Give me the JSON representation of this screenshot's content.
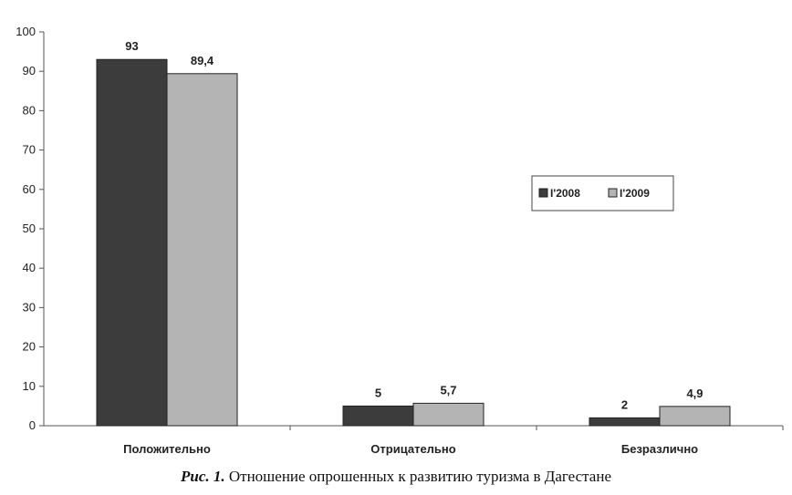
{
  "chart_data": {
    "type": "bar",
    "categories": [
      "Положительно",
      "Отрицательно",
      "Безразлично"
    ],
    "series": [
      {
        "name": "I'2008",
        "values": [
          93,
          5,
          2
        ],
        "labels": [
          "93",
          "5",
          "2"
        ],
        "color": "#3c3c3c"
      },
      {
        "name": "I'2009",
        "values": [
          89.4,
          5.7,
          4.9
        ],
        "labels": [
          "89,4",
          "5,7",
          "4,9"
        ],
        "color": "#b4b4b4"
      }
    ],
    "ylim": [
      0,
      100
    ],
    "yticks": [
      0,
      10,
      20,
      30,
      40,
      50,
      60,
      70,
      80,
      90,
      100
    ],
    "grid": false,
    "legend_position": "right"
  },
  "caption": {
    "prefix": "Рис. 1.",
    "text": "Отношение опрошенных к развитию туризма в Дагестане"
  }
}
